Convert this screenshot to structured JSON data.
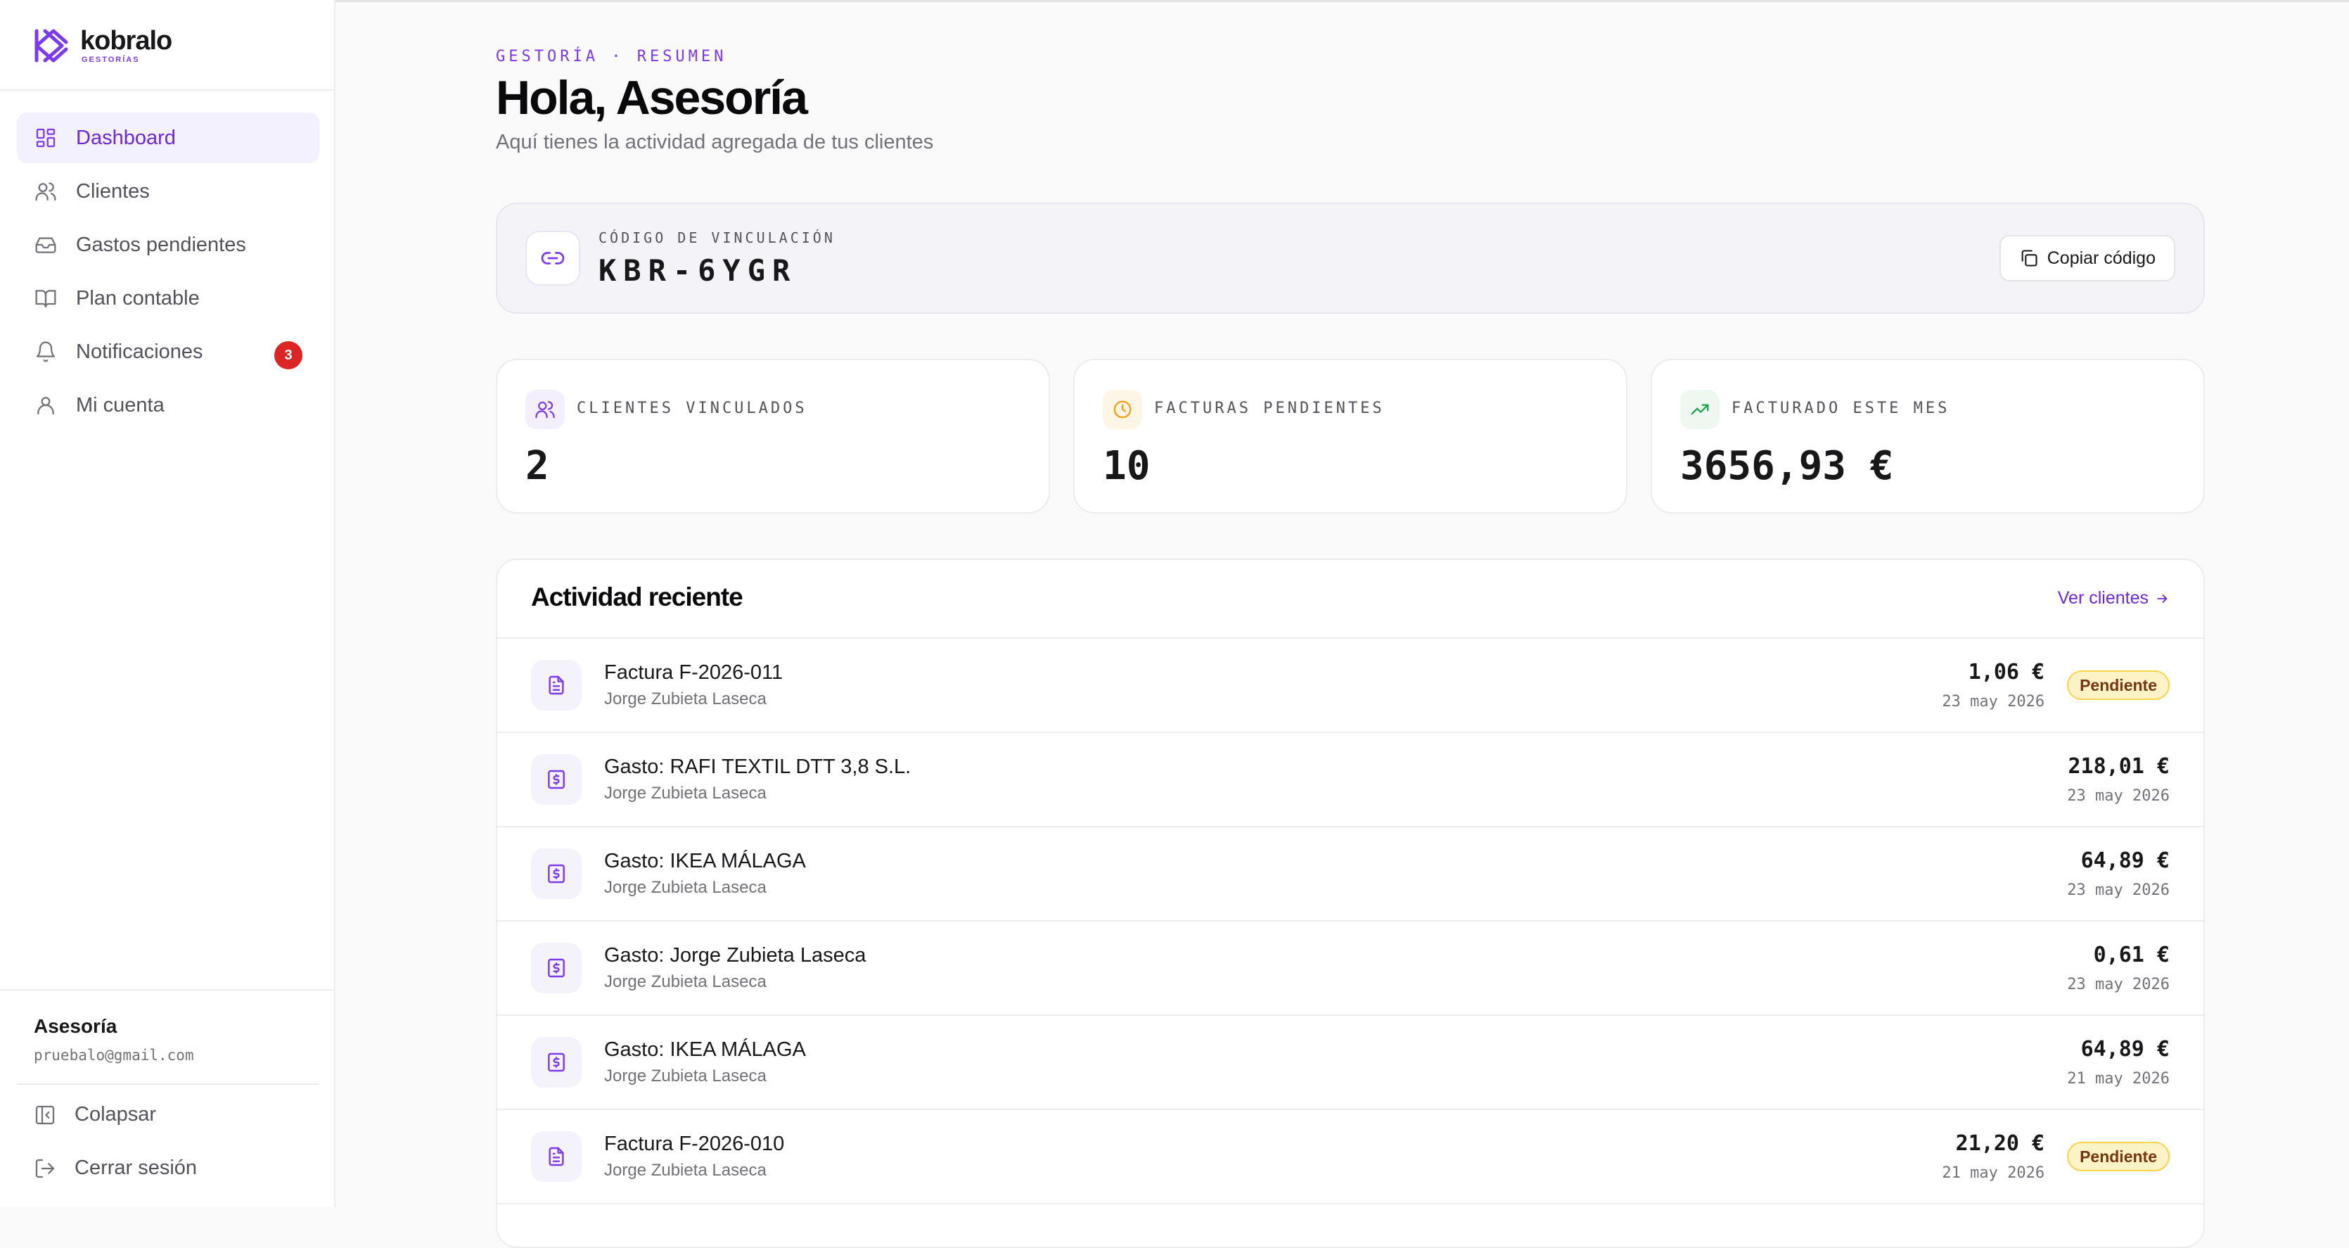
{
  "brand": {
    "name": "kobralo",
    "sub": "GESTORÍAS"
  },
  "sidebar": {
    "items": [
      {
        "label": "Dashboard",
        "icon": "dashboard-icon",
        "active": true
      },
      {
        "label": "Clientes",
        "icon": "users-icon"
      },
      {
        "label": "Gastos pendientes",
        "icon": "inbox-icon"
      },
      {
        "label": "Plan contable",
        "icon": "book-icon"
      },
      {
        "label": "Notificaciones",
        "icon": "bell-icon",
        "badge": "3"
      },
      {
        "label": "Mi cuenta",
        "icon": "user-icon"
      }
    ],
    "user": {
      "name": "Asesoría",
      "email": "pruebalo@gmail.com"
    },
    "footer": {
      "collapse": "Colapsar",
      "logout": "Cerrar sesión"
    }
  },
  "header": {
    "eyebrow": "GESTORÍA · RESUMEN",
    "title": "Hola, Asesoría",
    "subtitle": "Aquí tienes la actividad agregada de tus clientes"
  },
  "link_code": {
    "label": "CÓDIGO DE VINCULACIÓN",
    "code": "KBR-6YGR",
    "copy_label": "Copiar código"
  },
  "stats": [
    {
      "label": "CLIENTES VINCULADOS",
      "value": "2",
      "icon": "users-icon",
      "color": "#7c3aed"
    },
    {
      "label": "FACTURAS PENDIENTES",
      "value": "10",
      "icon": "clock-icon",
      "color": "#f59e0b"
    },
    {
      "label": "FACTURADO ESTE MES",
      "value": "3656,93 €",
      "icon": "trending-up-icon",
      "color": "#16a34a"
    }
  ],
  "activity": {
    "title": "Actividad reciente",
    "link": "Ver clientes",
    "rows": [
      {
        "kind": "invoice",
        "title": "Factura F-2026-011",
        "client": "Jorge Zubieta Laseca",
        "amount": "1,06 €",
        "date": "23 may 2026",
        "badge": "Pendiente"
      },
      {
        "kind": "expense",
        "title": "Gasto: RAFI TEXTIL DTT 3,8 S.L.",
        "client": "Jorge Zubieta Laseca",
        "amount": "218,01 €",
        "date": "23 may 2026"
      },
      {
        "kind": "expense",
        "title": "Gasto: IKEA MÁLAGA",
        "client": "Jorge Zubieta Laseca",
        "amount": "64,89 €",
        "date": "23 may 2026"
      },
      {
        "kind": "expense",
        "title": "Gasto: Jorge Zubieta Laseca",
        "client": "Jorge Zubieta Laseca",
        "amount": "0,61 €",
        "date": "23 may 2026"
      },
      {
        "kind": "expense",
        "title": "Gasto: IKEA MÁLAGA",
        "client": "Jorge Zubieta Laseca",
        "amount": "64,89 €",
        "date": "21 may 2026"
      },
      {
        "kind": "invoice",
        "title": "Factura F-2026-010",
        "client": "Jorge Zubieta Laseca",
        "amount": "21,20 €",
        "date": "21 may 2026",
        "badge": "Pendiente"
      }
    ]
  }
}
